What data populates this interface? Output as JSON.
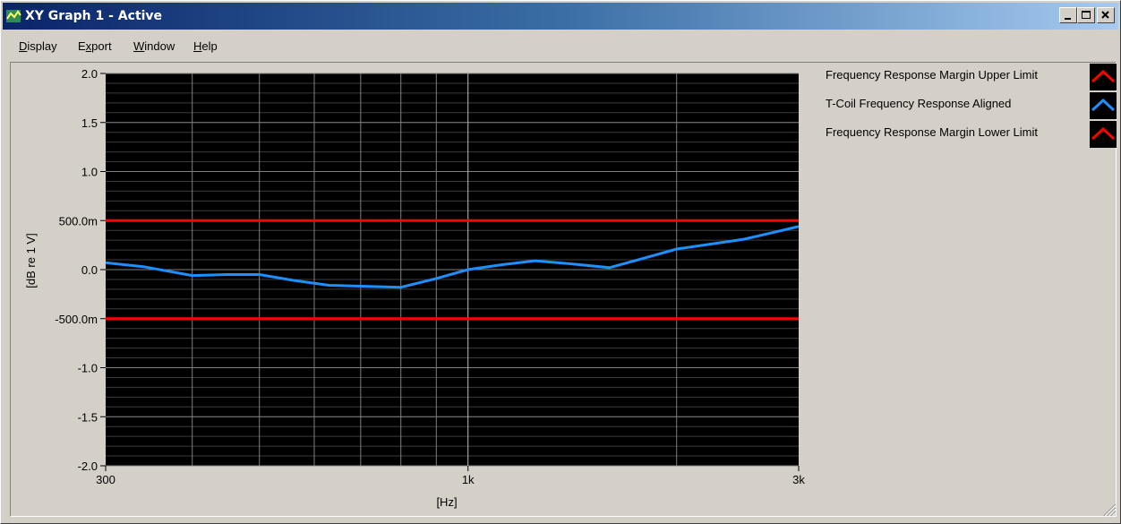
{
  "window": {
    "title": "XY Graph 1 - Active",
    "app_icon": "ap-graph-icon",
    "controls": {
      "minimize": "minimize-icon",
      "maximize": "maximize-icon",
      "close": "close-icon"
    }
  },
  "menu": {
    "items": [
      {
        "label": "Display",
        "mnemonic": "D"
      },
      {
        "label": "Export",
        "mnemonic": "x"
      },
      {
        "label": "Window",
        "mnemonic": "W"
      },
      {
        "label": "Help",
        "mnemonic": "H"
      }
    ]
  },
  "colors": {
    "background": "#d4d0c8",
    "plot_background": "#000000",
    "grid": "#7f7f7f",
    "limit_trace": "#ff0000",
    "response_trace": "#1e8fff"
  },
  "legend": [
    {
      "label": "Frequency Response Margin Upper Limit",
      "color": "#ff0000"
    },
    {
      "label": "T-Coil Frequency Response Aligned",
      "color": "#1e8fff"
    },
    {
      "label": "Frequency Response Margin Lower Limit",
      "color": "#ff0000"
    }
  ],
  "chart_data": {
    "type": "line",
    "x_scale": "log",
    "xlim": [
      300,
      3000
    ],
    "ylim": [
      -2.0,
      2.0
    ],
    "xlabel": "[Hz]",
    "ylabel": "[dB re 1 V]",
    "x_tick_labels": [
      {
        "value": 300,
        "label": "300"
      },
      {
        "value": 1000,
        "label": "1k"
      },
      {
        "value": 3000,
        "label": "3k"
      }
    ],
    "y_tick_labels": [
      {
        "value": 2.0,
        "label": "2.0"
      },
      {
        "value": 1.5,
        "label": "1.5"
      },
      {
        "value": 1.0,
        "label": "1.0"
      },
      {
        "value": 0.5,
        "label": "500.0m"
      },
      {
        "value": 0.0,
        "label": "0.0"
      },
      {
        "value": -0.5,
        "label": "-500.0m"
      },
      {
        "value": -1.0,
        "label": "-1.0"
      },
      {
        "value": -1.5,
        "label": "-1.5"
      },
      {
        "value": -2.0,
        "label": "-2.0"
      }
    ],
    "grid": true,
    "legend_position": "right",
    "series": [
      {
        "name": "Frequency Response Margin Upper Limit",
        "color": "#ff0000",
        "x": [
          300,
          3000
        ],
        "y": [
          0.5,
          0.5
        ]
      },
      {
        "name": "T-Coil Frequency Response Aligned",
        "color": "#1e8fff",
        "x": [
          300,
          340,
          400,
          450,
          500,
          560,
          630,
          710,
          800,
          900,
          1000,
          1120,
          1250,
          1400,
          1600,
          1800,
          2000,
          2240,
          2500,
          2800,
          3000
        ],
        "y": [
          0.07,
          0.03,
          -0.06,
          -0.05,
          -0.05,
          -0.11,
          -0.16,
          -0.17,
          -0.18,
          -0.09,
          0.0,
          0.05,
          0.09,
          0.06,
          0.02,
          0.12,
          0.21,
          0.26,
          0.31,
          0.39,
          0.44
        ]
      },
      {
        "name": "Frequency Response Margin Lower Limit",
        "color": "#ff0000",
        "x": [
          300,
          3000
        ],
        "y": [
          -0.5,
          -0.5
        ]
      }
    ]
  }
}
